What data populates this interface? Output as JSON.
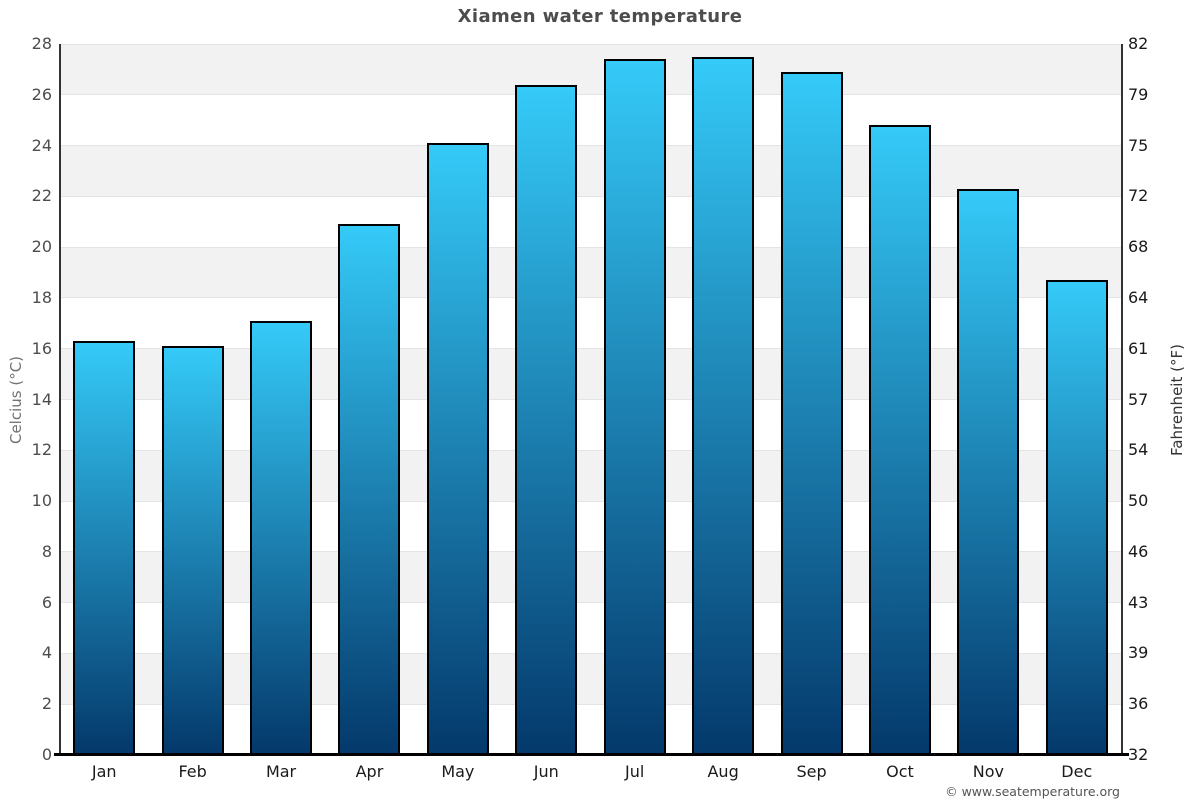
{
  "chart_data": {
    "type": "bar",
    "title": "Xiamen water temperature",
    "categories": [
      "Jan",
      "Feb",
      "Mar",
      "Apr",
      "May",
      "Jun",
      "Jul",
      "Aug",
      "Sep",
      "Oct",
      "Nov",
      "Dec"
    ],
    "values": [
      16.3,
      16.1,
      17.1,
      20.9,
      24.1,
      26.4,
      27.4,
      27.5,
      26.9,
      24.8,
      22.3,
      18.7
    ],
    "unit": "°C",
    "ylabel_left": "Celcius (°C)",
    "ylabel_right": "Fahrenheit (°F)",
    "ylim": [
      0,
      28
    ],
    "celsius_ticks": [
      0,
      2,
      4,
      6,
      8,
      10,
      12,
      14,
      16,
      18,
      20,
      22,
      24,
      26,
      28
    ],
    "fahrenheit_tick_labels": [
      "32",
      "36",
      "39",
      "43",
      "46",
      "50",
      "54",
      "57",
      "61",
      "64",
      "68",
      "72",
      "75",
      "79",
      "82"
    ],
    "legend": "none",
    "grid": "alternating-horizontal-bands",
    "colors": {
      "bar_top": "#35CAF8",
      "bar_bottom": "#04396B",
      "bar_border": "#000000",
      "band": "#F2F2F2",
      "band_alt": "#FFFFFF",
      "gridline": "#E4E4E4",
      "axis": "#333333",
      "title_text": "#4D4D4D"
    }
  },
  "footer": {
    "copyright": "© www.seatemperature.org"
  }
}
